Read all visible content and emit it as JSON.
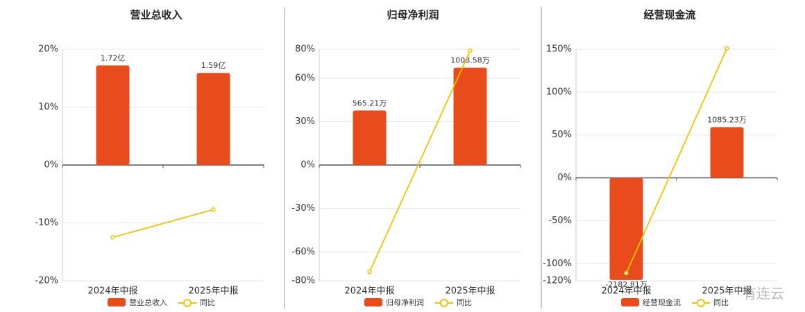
{
  "chart_data": [
    {
      "type": "bar_line",
      "title": "营业总收入",
      "categories": [
        "2024年中报",
        "2025年中报"
      ],
      "series": [
        {
          "name": "营业总收入",
          "type": "bar",
          "color": "#e84c1c",
          "axis": "y2",
          "values": [
            1.72,
            1.59
          ],
          "value_labels": [
            "1.72亿",
            "1.59亿"
          ]
        },
        {
          "name": "同比",
          "type": "line",
          "color": "#f5c400",
          "values": [
            -12.5,
            -7.7
          ]
        }
      ],
      "ylim": [
        -20,
        20
      ],
      "yticks": [
        {
          "value": -20,
          "label": "-20%"
        },
        {
          "value": -10,
          "label": "-10%"
        },
        {
          "value": 0,
          "label": "0%"
        },
        {
          "value": 10,
          "label": "10%"
        },
        {
          "value": 20,
          "label": "20%"
        }
      ],
      "y2lim": [
        -2,
        2
      ],
      "grid": true
    },
    {
      "type": "bar_line",
      "title": "归母净利润",
      "categories": [
        "2024年中报",
        "2025年中报"
      ],
      "series": [
        {
          "name": "归母净利润",
          "type": "bar",
          "color": "#e84c1c",
          "axis": "y2",
          "values": [
            565.21,
            1008.58
          ],
          "value_labels": [
            "565.21万",
            "1008.58万"
          ]
        },
        {
          "name": "同比",
          "type": "line",
          "color": "#f5c400",
          "values": [
            -73.8,
            79
          ]
        }
      ],
      "ylim": [
        -80,
        80
      ],
      "yticks": [
        {
          "value": -80,
          "label": "-80%"
        },
        {
          "value": -60,
          "label": "-60%"
        },
        {
          "value": -30,
          "label": "-30%"
        },
        {
          "value": 0,
          "label": "0%"
        },
        {
          "value": 30,
          "label": "30%"
        },
        {
          "value": 60,
          "label": "60%"
        },
        {
          "value": 80,
          "label": "80%"
        }
      ],
      "y2lim": [
        -1200,
        1200
      ],
      "grid": true
    },
    {
      "type": "bar_line",
      "title": "经营现金流",
      "categories": [
        "2024年中报",
        "2025年中报"
      ],
      "series": [
        {
          "name": "经营现金流",
          "type": "bar",
          "color": "#e84c1c",
          "axis": "y2",
          "values": [
            -2182.81,
            1085.23
          ],
          "value_labels": [
            "-2182.81万",
            "1085.23万"
          ]
        },
        {
          "name": "同比",
          "type": "line",
          "color": "#f5c400",
          "values": [
            -111,
            151
          ]
        }
      ],
      "ylim": [
        -120,
        150
      ],
      "yticks": [
        {
          "value": -120,
          "label": "-120%"
        },
        {
          "value": -100,
          "label": "-100%"
        },
        {
          "value": -50,
          "label": "-50%"
        },
        {
          "value": 0,
          "label": "0%"
        },
        {
          "value": 50,
          "label": "50%"
        },
        {
          "value": 100,
          "label": "100%"
        },
        {
          "value": 150,
          "label": "150%"
        }
      ],
      "y2lim": [
        -2200,
        2750
      ],
      "grid": true
    }
  ],
  "watermark": "有连云"
}
